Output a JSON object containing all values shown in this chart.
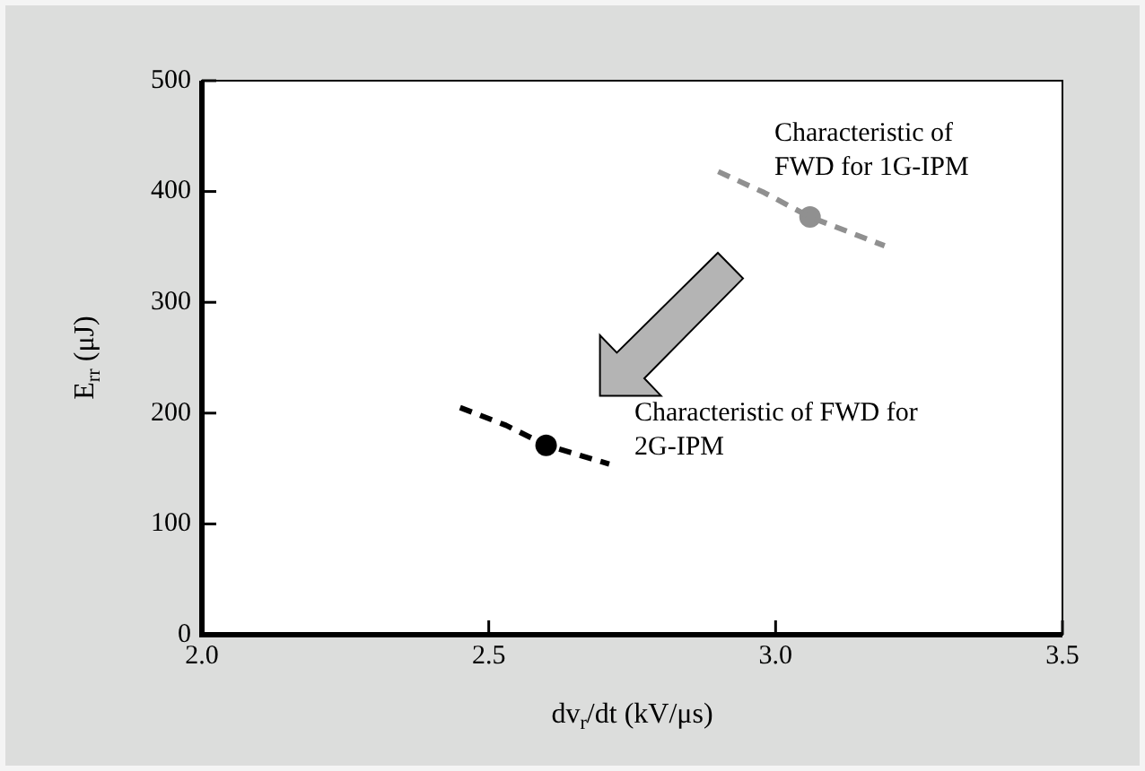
{
  "chart_data": {
    "type": "line",
    "xlabel": "dv$_{r}$/dt (kV/μs)",
    "ylabel": "E$_{rr}$ (μJ)",
    "xlim": [
      2,
      3.5
    ],
    "xticks": [
      {
        "value": 2,
        "label": "2.0"
      },
      {
        "value": 2.5,
        "label": "2.5"
      },
      {
        "value": 3,
        "label": "3.0"
      },
      {
        "value": 3.5,
        "label": "3.5"
      }
    ],
    "ylim": [
      0,
      500
    ],
    "yticks": [
      0,
      100,
      200,
      300,
      400,
      500
    ],
    "grid": false,
    "legend": false,
    "series": [
      {
        "color": "#909090",
        "line_style": "dashed",
        "marker": "none",
        "x": [
          2.9,
          2.98,
          3.06,
          3.19
        ],
        "values": [
          418,
          399,
          377,
          351
        ]
      },
      {
        "type": "scatter",
        "color": "#909090",
        "marker": "circle",
        "x": [
          3.06
        ],
        "values": [
          377
        ]
      },
      {
        "color": "#000000",
        "line_style": "dashed",
        "marker": "none",
        "x": [
          2.45,
          2.53,
          2.6,
          2.71
        ],
        "values": [
          205,
          189,
          171,
          154
        ]
      },
      {
        "type": "scatter",
        "color": "#000000",
        "marker": "circle",
        "x": [
          2.6
        ],
        "values": [
          171
        ]
      }
    ],
    "annotations": [
      "Characteristic of FWD for 1G-IPM",
      "Characteristic of FWD for 2G-IPM"
    ]
  }
}
